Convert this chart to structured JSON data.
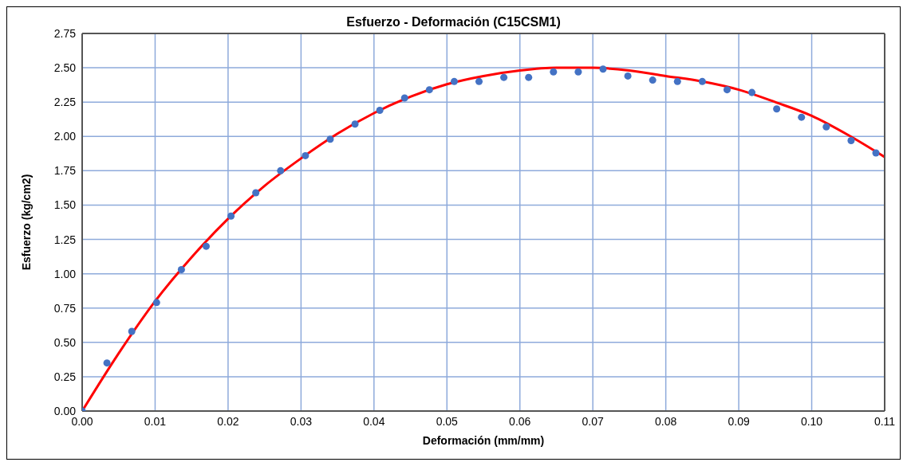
{
  "chart_data": {
    "type": "scatter",
    "title": "Esfuerzo - Deformación (C15CSM1)",
    "xlabel": "Deformación (mm/mm)",
    "ylabel": "Esfuerzo (kg/cm2)",
    "xlim": [
      0,
      0.11
    ],
    "xticks": [
      {
        "value": 0,
        "label": "0.00"
      },
      {
        "value": 0.01,
        "label": "0.01"
      },
      {
        "value": 0.02,
        "label": "0.02"
      },
      {
        "value": 0.03,
        "label": "0.03"
      },
      {
        "value": 0.04,
        "label": "0.04"
      },
      {
        "value": 0.05,
        "label": "0.05"
      },
      {
        "value": 0.06,
        "label": "0.06"
      },
      {
        "value": 0.07,
        "label": "0.07"
      },
      {
        "value": 0.08,
        "label": "0.08"
      },
      {
        "value": 0.09,
        "label": "0.09"
      },
      {
        "value": 0.1,
        "label": "0.10"
      },
      {
        "value": 0.11,
        "label": "0.11"
      }
    ],
    "ylim": [
      0,
      2.75
    ],
    "yticks": [
      {
        "value": 0,
        "label": "0.00"
      },
      {
        "value": 0.25,
        "label": "0.25"
      },
      {
        "value": 0.5,
        "label": "0.50"
      },
      {
        "value": 0.75,
        "label": "0.75"
      },
      {
        "value": 1,
        "label": "1.00"
      },
      {
        "value": 1.25,
        "label": "1.25"
      },
      {
        "value": 1.5,
        "label": "1.50"
      },
      {
        "value": 1.75,
        "label": "1.75"
      },
      {
        "value": 2,
        "label": "2.00"
      },
      {
        "value": 2.25,
        "label": "2.25"
      },
      {
        "value": 2.5,
        "label": "2.50"
      },
      {
        "value": 2.75,
        "label": "2.75"
      }
    ],
    "grid": true,
    "series": [
      {
        "color": "#4472c4",
        "marker": "circle",
        "x": [
          0,
          0.0034,
          0.0068,
          0.0102,
          0.0136,
          0.017,
          0.0204,
          0.0238,
          0.0272,
          0.0306,
          0.034,
          0.0374,
          0.0408,
          0.0442,
          0.0476,
          0.051,
          0.0544,
          0.0578,
          0.0612,
          0.0646,
          0.068,
          0.0714,
          0.0748,
          0.0782,
          0.0816,
          0.085,
          0.0884,
          0.0918,
          0.0952,
          0.0986,
          0.102,
          0.1054,
          0.1088
        ],
        "values": [
          0,
          0.35,
          0.58,
          0.79,
          1.03,
          1.2,
          1.42,
          1.59,
          1.75,
          1.86,
          1.98,
          2.09,
          2.19,
          2.28,
          2.34,
          2.4,
          2.4,
          2.43,
          2.43,
          2.47,
          2.47,
          2.49,
          2.44,
          2.41,
          2.4,
          2.4,
          2.34,
          2.32,
          2.2,
          2.14,
          2.07,
          1.97,
          1.88
        ]
      },
      {
        "type": "line",
        "color": "#ff0000",
        "marker": "none",
        "line_style": "solid",
        "x": [
          0,
          0.005,
          0.01,
          0.015,
          0.02,
          0.025,
          0.03,
          0.035,
          0.04,
          0.045,
          0.05,
          0.055,
          0.06,
          0.065,
          0.07,
          0.075,
          0.08,
          0.085,
          0.09,
          0.095,
          0.1,
          0.105,
          0.11
        ],
        "values": [
          0,
          0.42,
          0.8,
          1.12,
          1.4,
          1.64,
          1.84,
          2.02,
          2.17,
          2.29,
          2.38,
          2.44,
          2.48,
          2.5,
          2.5,
          2.48,
          2.44,
          2.4,
          2.34,
          2.25,
          2.15,
          2.01,
          1.85
        ]
      }
    ]
  }
}
